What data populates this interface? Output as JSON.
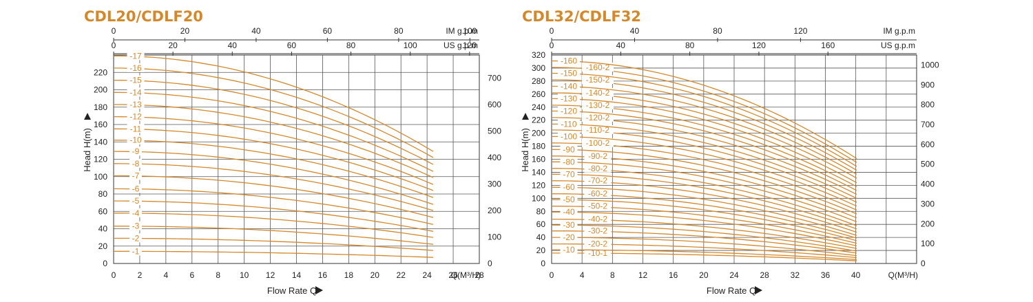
{
  "theme": {
    "accent": "#d4882a",
    "grid": "#555555",
    "text": "#222222"
  },
  "chart_data": [
    {
      "type": "line",
      "title": "CDL20/CDLF20",
      "xlabel": "Flow Rate Q",
      "ylabel": "Head H(m)",
      "x_unit": "Q(M³/H)",
      "xlim": [
        0,
        28
      ],
      "ylim": [
        0,
        240
      ],
      "x_ticks": [
        0,
        2,
        4,
        6,
        8,
        10,
        12,
        14,
        16,
        18,
        20,
        22,
        24,
        26,
        28
      ],
      "y_ticks": [
        0,
        20,
        40,
        60,
        80,
        100,
        120,
        140,
        160,
        180,
        200,
        220
      ],
      "right_axis": {
        "ticks": [
          0,
          100,
          200,
          300,
          400,
          500,
          600,
          700
        ],
        "factor": 3.281
      },
      "top_axes": [
        {
          "unit": "IM g.p.m",
          "ticks": [
            0,
            20,
            40,
            60,
            80,
            100
          ],
          "factor": 3.666
        },
        {
          "unit": "US g.p.m",
          "ticks": [
            0,
            20,
            40,
            60,
            80,
            100,
            120
          ],
          "factor": 4.403
        }
      ],
      "series": [
        {
          "name": "-1",
          "shutoff": 14,
          "end": 7
        },
        {
          "name": "-2",
          "shutoff": 29,
          "end": 15
        },
        {
          "name": "-3",
          "shutoff": 43,
          "end": 22
        },
        {
          "name": "-4",
          "shutoff": 58,
          "end": 30
        },
        {
          "name": "-5",
          "shutoff": 72,
          "end": 37
        },
        {
          "name": "-6",
          "shutoff": 86,
          "end": 45
        },
        {
          "name": "-7",
          "shutoff": 101,
          "end": 53
        },
        {
          "name": "-8",
          "shutoff": 115,
          "end": 61
        },
        {
          "name": "-9",
          "shutoff": 129,
          "end": 68
        },
        {
          "name": "-10",
          "shutoff": 142,
          "end": 76
        },
        {
          "name": "-11",
          "shutoff": 155,
          "end": 84
        },
        {
          "name": "-12",
          "shutoff": 169,
          "end": 91
        },
        {
          "name": "-13",
          "shutoff": 183,
          "end": 99
        },
        {
          "name": "-14",
          "shutoff": 197,
          "end": 106
        },
        {
          "name": "-15",
          "shutoff": 211,
          "end": 114
        },
        {
          "name": "-16",
          "shutoff": 225,
          "end": 122
        },
        {
          "name": "-17",
          "shutoff": 239,
          "end": 129
        }
      ]
    },
    {
      "type": "line",
      "title": "CDL32/CDLF32",
      "xlabel": "Flow Rate Q",
      "ylabel": "Head H(m)",
      "x_unit": "Q(M³/H)",
      "xlim": [
        0,
        48
      ],
      "ylim": [
        0,
        320
      ],
      "x_ticks": [
        0,
        4,
        8,
        12,
        16,
        20,
        24,
        28,
        32,
        36,
        40
      ],
      "y_ticks": [
        0,
        20,
        40,
        60,
        80,
        100,
        120,
        140,
        160,
        180,
        200,
        220,
        240,
        260,
        280,
        300,
        320
      ],
      "right_axis": {
        "ticks": [
          0,
          100,
          200,
          300,
          400,
          500,
          600,
          700,
          800,
          900,
          1000
        ],
        "factor": 3.281
      },
      "top_axes": [
        {
          "unit": "IM g.p.m",
          "ticks": [
            0,
            40,
            80,
            120
          ],
          "factor": 3.666
        },
        {
          "unit": "US g.p.m",
          "ticks": [
            0,
            40,
            80,
            120,
            160
          ],
          "factor": 4.403
        }
      ],
      "series": [
        {
          "name": "-10-1",
          "shutoff": 16,
          "end": 4
        },
        {
          "name": "-10",
          "shutoff": 21,
          "end": 6
        },
        {
          "name": "-20-2",
          "shutoff": 30,
          "end": 9
        },
        {
          "name": "-20",
          "shutoff": 40,
          "end": 12
        },
        {
          "name": "-30-2",
          "shutoff": 50,
          "end": 16
        },
        {
          "name": "-30",
          "shutoff": 59,
          "end": 19
        },
        {
          "name": "-40-2",
          "shutoff": 68,
          "end": 23
        },
        {
          "name": "-40",
          "shutoff": 79,
          "end": 27
        },
        {
          "name": "-50-2",
          "shutoff": 88,
          "end": 31
        },
        {
          "name": "-50",
          "shutoff": 98,
          "end": 35
        },
        {
          "name": "-60-2",
          "shutoff": 107,
          "end": 39
        },
        {
          "name": "-60",
          "shutoff": 117,
          "end": 43
        },
        {
          "name": "-70-2",
          "shutoff": 127,
          "end": 48
        },
        {
          "name": "-70",
          "shutoff": 137,
          "end": 53
        },
        {
          "name": "-80-2",
          "shutoff": 146,
          "end": 58
        },
        {
          "name": "-80",
          "shutoff": 156,
          "end": 64
        },
        {
          "name": "-90-2",
          "shutoff": 165,
          "end": 70
        },
        {
          "name": "-90",
          "shutoff": 175,
          "end": 76
        },
        {
          "name": "-100-2",
          "shutoff": 185,
          "end": 82
        },
        {
          "name": "-100",
          "shutoff": 195,
          "end": 88
        },
        {
          "name": "-110-2",
          "shutoff": 205,
          "end": 94
        },
        {
          "name": "-110",
          "shutoff": 214,
          "end": 100
        },
        {
          "name": "-120-2",
          "shutoff": 224,
          "end": 106
        },
        {
          "name": "-120",
          "shutoff": 234,
          "end": 112
        },
        {
          "name": "-130-2",
          "shutoff": 243,
          "end": 118
        },
        {
          "name": "-130",
          "shutoff": 253,
          "end": 124
        },
        {
          "name": "-140-2",
          "shutoff": 262,
          "end": 131
        },
        {
          "name": "-140",
          "shutoff": 272,
          "end": 137
        },
        {
          "name": "-150-2",
          "shutoff": 282,
          "end": 143
        },
        {
          "name": "-150",
          "shutoff": 292,
          "end": 149
        },
        {
          "name": "-160-2",
          "shutoff": 301,
          "end": 155
        },
        {
          "name": "-160",
          "shutoff": 311,
          "end": 161
        }
      ]
    }
  ]
}
